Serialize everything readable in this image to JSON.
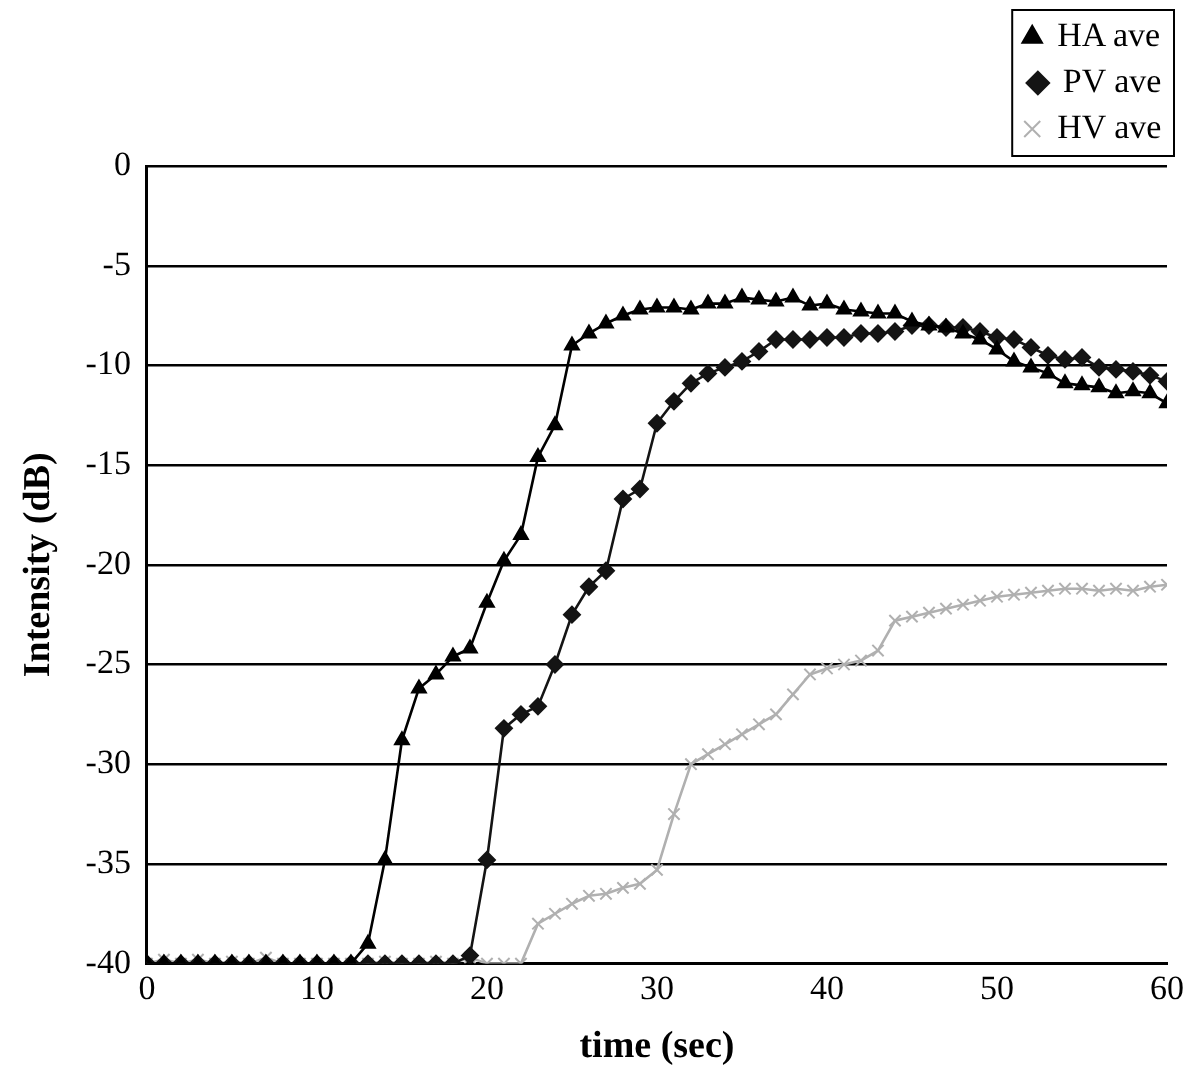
{
  "chart_data": {
    "type": "line",
    "xlabel": "time (sec)",
    "ylabel": "Intensity (dB)",
    "x": [
      0,
      1,
      2,
      3,
      4,
      5,
      6,
      7,
      8,
      9,
      10,
      11,
      12,
      13,
      14,
      15,
      16,
      17,
      18,
      19,
      20,
      21,
      22,
      23,
      24,
      25,
      26,
      27,
      28,
      29,
      30,
      31,
      32,
      33,
      34,
      35,
      36,
      37,
      38,
      39,
      40,
      41,
      42,
      43,
      44,
      45,
      46,
      47,
      48,
      49,
      50,
      51,
      52,
      53,
      54,
      55,
      56,
      57,
      58,
      59,
      60
    ],
    "series": [
      {
        "name": "HA ave",
        "color": "#000000",
        "marker": "triangle",
        "values": [
          -40,
          -40,
          -40,
          -40,
          -40,
          -40,
          -40,
          -40,
          -40,
          -40,
          -40,
          -40,
          -40,
          -39,
          -34.8,
          -28.8,
          -26.2,
          -25.5,
          -24.6,
          -24.2,
          -21.9,
          -19.8,
          -18.5,
          -14.6,
          -13,
          -9,
          -8.4,
          -7.9,
          -7.5,
          -7.2,
          -7.1,
          -7.1,
          -7.2,
          -6.9,
          -6.9,
          -6.6,
          -6.7,
          -6.8,
          -6.6,
          -7,
          -6.9,
          -7.2,
          -7.3,
          -7.4,
          -7.4,
          -7.8,
          -8,
          -8.1,
          -8.4,
          -8.7,
          -9.2,
          -9.8,
          -10.1,
          -10.4,
          -10.9,
          -11,
          -11.1,
          -11.4,
          -11.3,
          -11.4,
          -11.9
        ]
      },
      {
        "name": "PV ave",
        "color": "#141414",
        "marker": "diamond",
        "values": [
          -40,
          -40,
          -40,
          -40,
          -40,
          -40,
          -40,
          -40,
          -40,
          -40,
          -40,
          -40,
          -40,
          -40,
          -40,
          -40,
          -40,
          -40,
          -40,
          -39.6,
          -34.8,
          -28.2,
          -27.5,
          -27.1,
          -25,
          -22.5,
          -21.1,
          -20.3,
          -16.7,
          -16.2,
          -12.9,
          -11.8,
          -10.9,
          -10.4,
          -10.1,
          -9.8,
          -9.3,
          -8.7,
          -8.7,
          -8.7,
          -8.6,
          -8.6,
          -8.4,
          -8.4,
          -8.3,
          -8,
          -8,
          -8.1,
          -8.1,
          -8.3,
          -8.6,
          -8.7,
          -9.1,
          -9.5,
          -9.7,
          -9.6,
          -10.1,
          -10.2,
          -10.3,
          -10.5,
          -10.8
        ]
      },
      {
        "name": "HV ave",
        "color": "#b0b0b0",
        "marker": "cross",
        "values": [
          -40,
          -39.8,
          -40,
          -39.8,
          -40,
          -39.9,
          -40,
          -39.7,
          -40,
          -40,
          -40,
          -40,
          -40,
          -40,
          -39.9,
          -40,
          -40,
          -39.9,
          -40,
          -39.7,
          -40,
          -40,
          -40,
          -38,
          -37.5,
          -37,
          -36.6,
          -36.5,
          -36.2,
          -36,
          -35.3,
          -32.5,
          -30,
          -29.5,
          -29,
          -28.5,
          -28,
          -27.5,
          -26.5,
          -25.5,
          -25.2,
          -25,
          -24.8,
          -24.3,
          -22.8,
          -22.6,
          -22.4,
          -22.2,
          -22,
          -21.8,
          -21.6,
          -21.5,
          -21.4,
          -21.3,
          -21.2,
          -21.2,
          -21.3,
          -21.2,
          -21.3,
          -21.1,
          -21
        ]
      }
    ],
    "xlim": [
      0,
      60
    ],
    "xticks": [
      0,
      10,
      20,
      30,
      40,
      50,
      60
    ],
    "ylim": [
      -40,
      0
    ],
    "yticks": [
      -40,
      -35,
      -30,
      -25,
      -20,
      -15,
      -10,
      -5,
      0
    ],
    "grid": "y",
    "legend": "top right",
    "line_style": "solid"
  }
}
